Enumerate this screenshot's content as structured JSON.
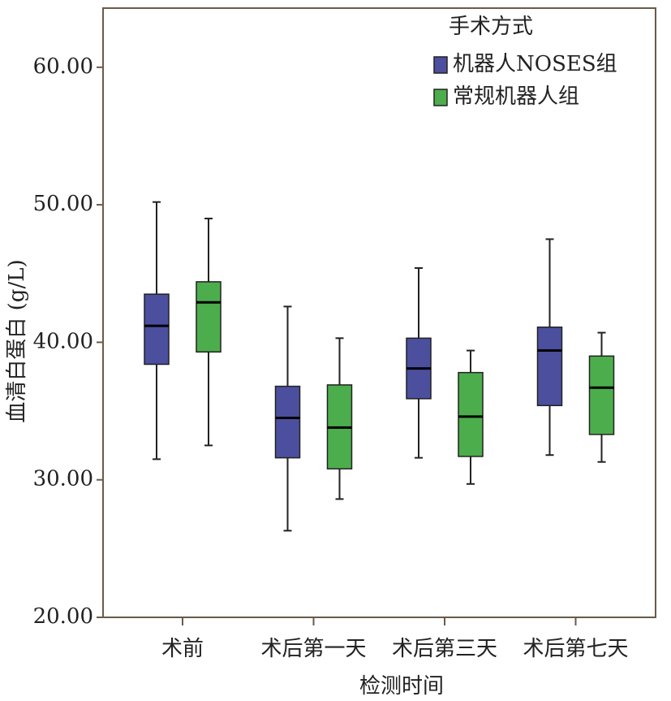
{
  "chart_data": {
    "type": "box",
    "y_label": "血清白蛋白 (g/L)",
    "x_label": "检测时间",
    "legend_title": "手术方式",
    "categories": [
      "术前",
      "术后第一天",
      "术后第三天",
      "术后第七天"
    ],
    "ylim": [
      20,
      64.3
    ],
    "yticks": [
      {
        "value": 20,
        "label": "20.00"
      },
      {
        "value": 30,
        "label": "30.00"
      },
      {
        "value": 40,
        "label": "40.00"
      },
      {
        "value": 50,
        "label": "50.00"
      },
      {
        "value": 60,
        "label": "60.00"
      }
    ],
    "series": [
      {
        "name": "机器人NOSES组",
        "color": "#4b4f9e",
        "min": [
          31.5,
          26.3,
          31.6,
          31.8
        ],
        "q1": [
          38.4,
          31.6,
          35.9,
          35.4
        ],
        "median": [
          41.2,
          34.5,
          38.1,
          39.4
        ],
        "q3": [
          43.5,
          36.8,
          40.3,
          41.1
        ],
        "max": [
          50.2,
          42.6,
          45.4,
          47.5
        ]
      },
      {
        "name": "常规机器人组",
        "color": "#4cad4c",
        "min": [
          32.5,
          28.6,
          29.7,
          31.3
        ],
        "q1": [
          39.3,
          30.8,
          31.7,
          33.3
        ],
        "median": [
          42.9,
          33.8,
          34.6,
          36.7
        ],
        "q3": [
          44.4,
          36.9,
          37.8,
          39.0
        ],
        "max": [
          49.0,
          40.3,
          39.4,
          40.7
        ]
      }
    ]
  }
}
